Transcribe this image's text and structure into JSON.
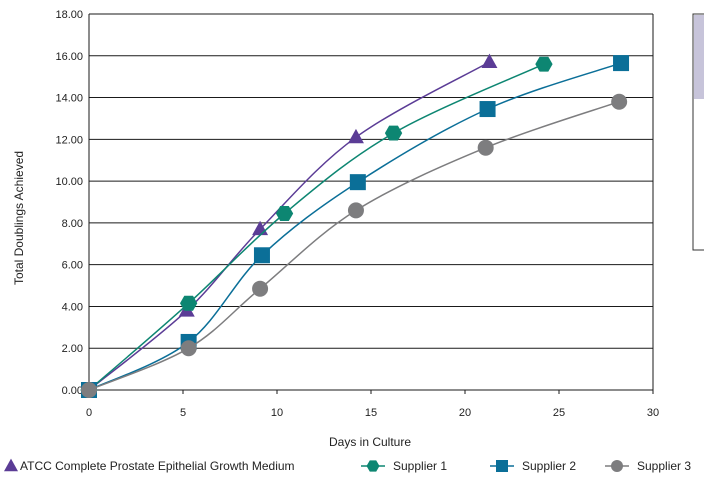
{
  "chart_data": {
    "type": "line",
    "xlabel": "Days in Culture",
    "ylabel": "Total Doublings Achieved",
    "xlim": [
      0,
      30
    ],
    "ylim": [
      0,
      18
    ],
    "xticks": [
      "0",
      "5",
      "10",
      "15",
      "20",
      "25",
      "30"
    ],
    "yticks": [
      "0.00",
      "2.00",
      "4.00",
      "6.00",
      "8.00",
      "10.00",
      "12.00",
      "14.00",
      "16.00",
      "18.00"
    ],
    "grid": "horizontal",
    "legend_position": "bottom",
    "series": [
      {
        "name": "ATCC Complete Prostate Epithelial Growth Medium",
        "marker": "triangle",
        "color": "#5b3c96",
        "points": [
          [
            0,
            0
          ],
          [
            5.2,
            3.8
          ],
          [
            9.1,
            7.7
          ],
          [
            14.2,
            12.1
          ],
          [
            21.3,
            15.7
          ]
        ]
      },
      {
        "name": "Supplier 1",
        "marker": "hexagon",
        "color": "#0d8672",
        "points": [
          [
            0,
            0
          ],
          [
            5.3,
            4.15
          ],
          [
            10.4,
            8.45
          ],
          [
            16.2,
            12.3
          ],
          [
            24.2,
            15.6
          ]
        ]
      },
      {
        "name": "Supplier 2",
        "marker": "square",
        "color": "#0b6f98",
        "points": [
          [
            0,
            0
          ],
          [
            5.3,
            2.3
          ],
          [
            9.2,
            6.45
          ],
          [
            14.3,
            9.95
          ],
          [
            21.2,
            13.45
          ],
          [
            28.3,
            15.65
          ]
        ]
      },
      {
        "name": "Supplier 3",
        "marker": "circle",
        "color": "#7d7d7f",
        "points": [
          [
            0,
            0
          ],
          [
            5.3,
            2.0
          ],
          [
            9.1,
            4.85
          ],
          [
            14.2,
            8.6
          ],
          [
            21.1,
            11.6
          ],
          [
            28.2,
            13.8
          ]
        ]
      }
    ]
  }
}
